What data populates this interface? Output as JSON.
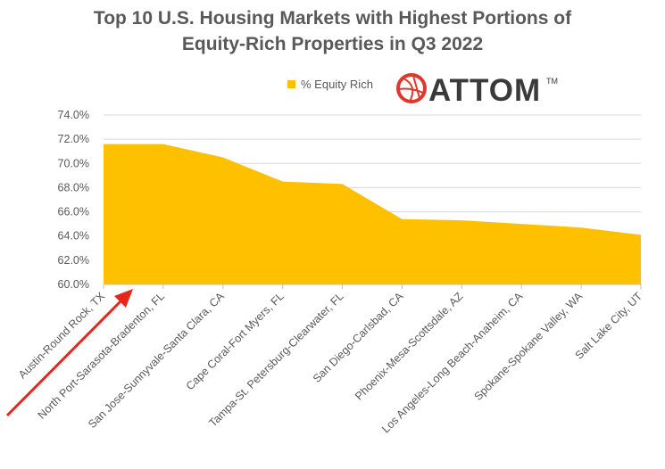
{
  "chart_data": {
    "type": "area",
    "title_lines": [
      "Top 10 U.S. Housing Markets with Highest Portions of",
      "Equity-Rich Properties in Q3 2022"
    ],
    "categories": [
      "Austin-Round Rock, TX",
      "North Port-Sarasota-Bradenton, FL",
      "San Jose-Sunnyvale-Santa Clara, CA",
      "Cape Coral-Fort Myers, FL",
      "Tampa-St. Petersburg-Clearwater, FL",
      "San Diego-Carlsbad, CA",
      "Phoenix-Mesa-Scottsdale, AZ",
      "Los Angeles-Long Beach-Anaheim, CA",
      "Spokane-Spokane Valley, WA",
      "Salt Lake City, UT"
    ],
    "series": [
      {
        "name": "% Equity Rich",
        "color": "#FFC000",
        "values": [
          71.6,
          71.6,
          70.5,
          68.5,
          68.3,
          65.4,
          65.3,
          65.0,
          64.7,
          64.1
        ]
      }
    ],
    "ylim": [
      60,
      74
    ],
    "yticks": [
      "60.0%",
      "62.0%",
      "64.0%",
      "66.0%",
      "68.0%",
      "70.0%",
      "72.0%",
      "74.0%"
    ],
    "grid": true,
    "legend_position": "top-center",
    "xlabel": "",
    "ylabel": ""
  },
  "logo": {
    "text": "ATTOM",
    "tm": "TM",
    "icon": "globe-icon",
    "color": "#E0362C"
  },
  "annotation": {
    "icon": "red-arrow-icon",
    "color": "#E8271C"
  }
}
